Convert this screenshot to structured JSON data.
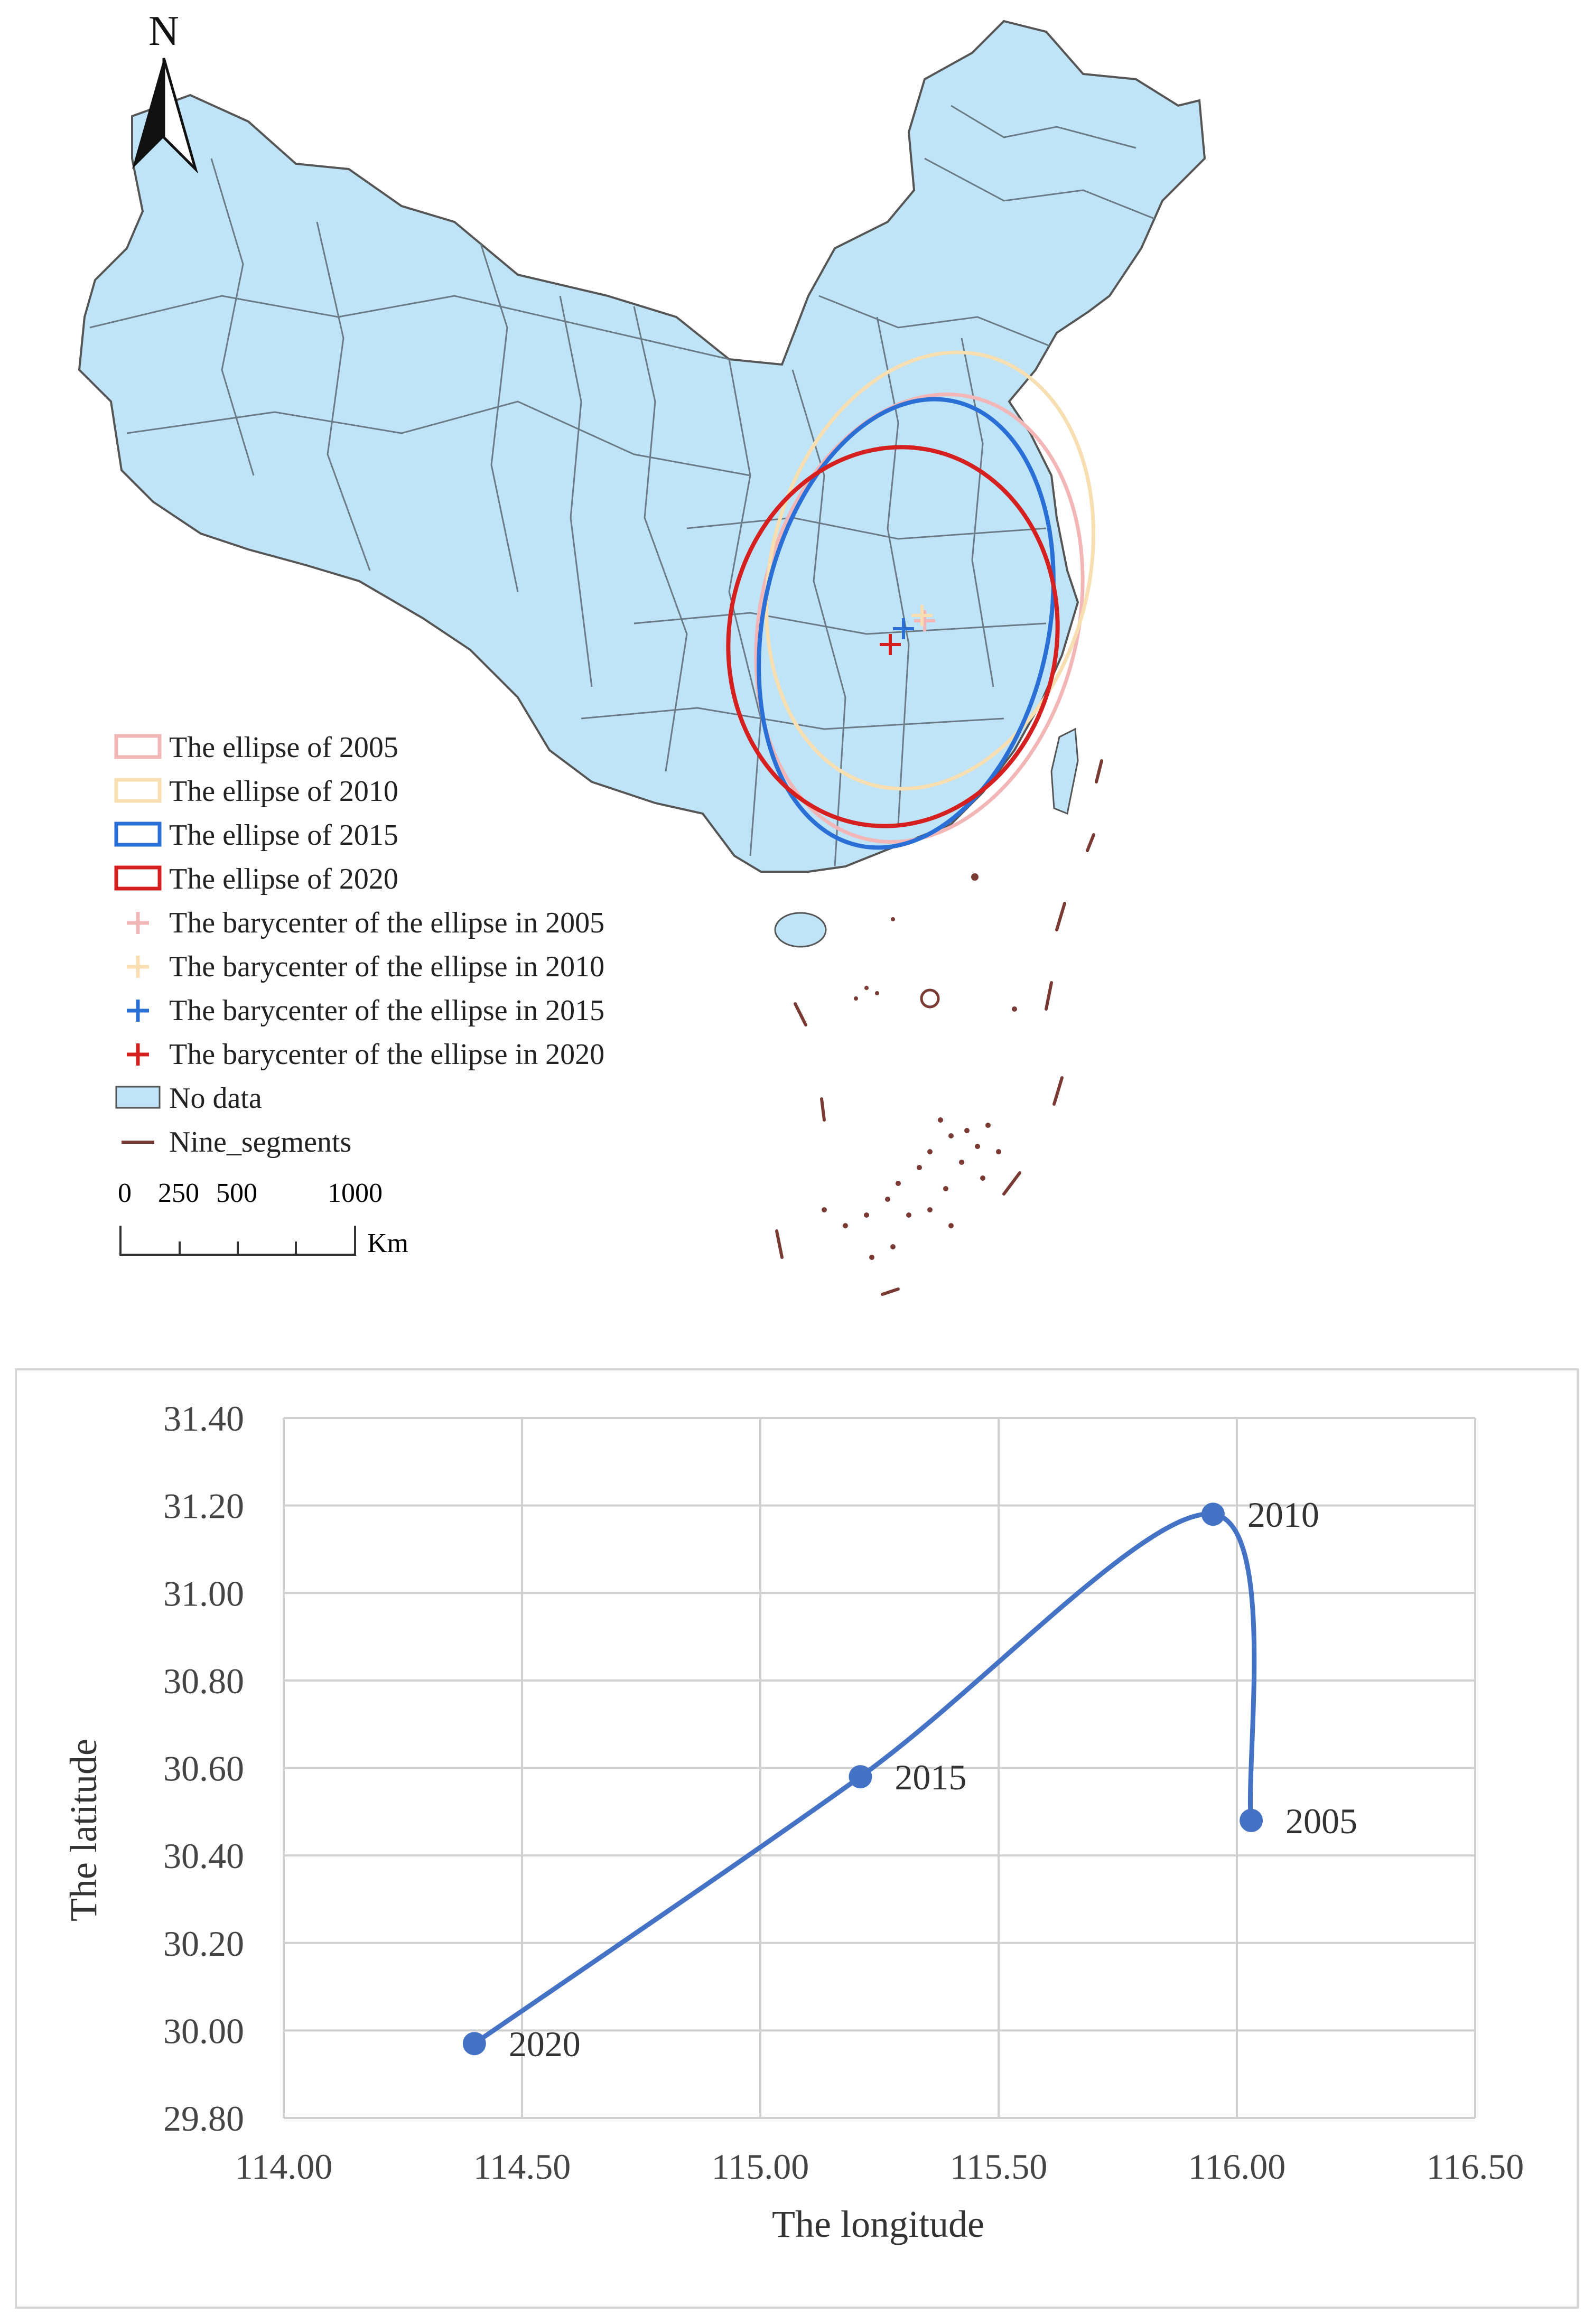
{
  "map": {
    "north_label": "N",
    "legend": [
      {
        "label": "The ellipse of 2005",
        "kind": "ellipse",
        "color": "#f2b6b6"
      },
      {
        "label": "The ellipse of 2010",
        "kind": "ellipse",
        "color": "#f7dfb2"
      },
      {
        "label": "The ellipse of 2015",
        "kind": "ellipse",
        "color": "#2a6fd6"
      },
      {
        "label": "The ellipse of 2020",
        "kind": "ellipse",
        "color": "#d61f1f"
      },
      {
        "label": "The barycenter of the ellipse in 2005",
        "kind": "cross",
        "color": "#f2b6b6"
      },
      {
        "label": "The barycenter of the ellipse in 2010",
        "kind": "cross",
        "color": "#f7dfb2"
      },
      {
        "label": "The barycenter of the ellipse in 2015",
        "kind": "cross",
        "color": "#2a6fd6"
      },
      {
        "label": "The barycenter of the ellipse in 2020",
        "kind": "cross",
        "color": "#d61f1f"
      },
      {
        "label": "No data",
        "kind": "fill",
        "color": "#bfe4f8"
      },
      {
        "label": "Nine_segments",
        "kind": "line",
        "color": "#7a3a34"
      }
    ],
    "scale_bar": {
      "ticks": [
        "0",
        "250",
        "500",
        "1000"
      ],
      "unit": "Km"
    },
    "colors": {
      "land": "#bfe4f8",
      "boundary": "#555555",
      "nine_segments": "#7a3a34"
    }
  },
  "chart_data": {
    "type": "line",
    "xlabel": "The longitude",
    "ylabel": "The latitude",
    "xlim": [
      114.0,
      116.5
    ],
    "ylim": [
      29.8,
      31.4
    ],
    "xticks": [
      "114.00",
      "114.50",
      "115.00",
      "115.50",
      "116.00",
      "116.50"
    ],
    "yticks": [
      "29.80",
      "30.00",
      "30.20",
      "30.40",
      "30.60",
      "30.80",
      "31.00",
      "31.20",
      "31.40"
    ],
    "grid": true,
    "line_color": "#4472c4",
    "points": [
      {
        "label": "2005",
        "x": 116.03,
        "y": 30.48
      },
      {
        "label": "2010",
        "x": 115.95,
        "y": 31.18
      },
      {
        "label": "2015",
        "x": 115.21,
        "y": 30.58
      },
      {
        "label": "2020",
        "x": 114.4,
        "y": 29.97
      }
    ]
  }
}
